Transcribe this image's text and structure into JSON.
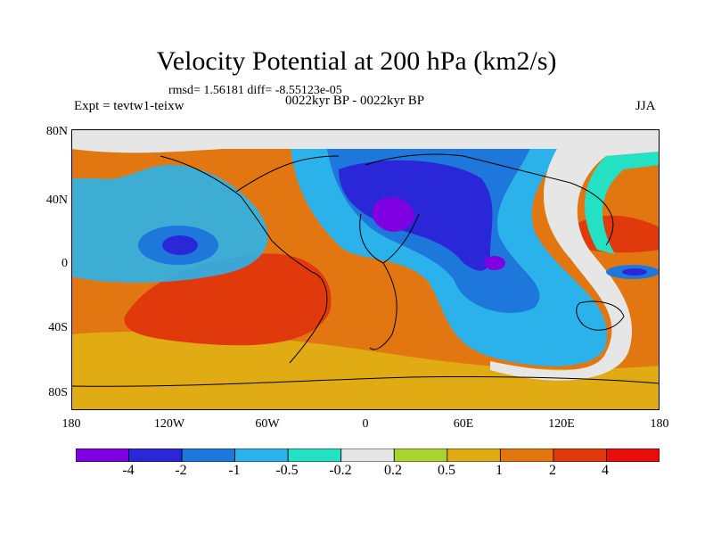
{
  "title": "Velocity Potential at 200 hPa (km2/s)",
  "stats": "rmsd= 1.56181 diff= -8.55123e-05",
  "experiment": "Expt = tevtw1-teixw",
  "period": "0022kyr BP - 0022kyr BP",
  "season": "JJA",
  "y_axis_labels": [
    "80N",
    "40N",
    "0",
    "40S",
    "80S"
  ],
  "x_axis_labels": [
    "180",
    "120W",
    "60W",
    "0",
    "60E",
    "120E",
    "180"
  ],
  "colorbar": {
    "labels": [
      "-4",
      "-2",
      "-1",
      "-0.5",
      "-0.2",
      "0.2",
      "0.5",
      "1",
      "2",
      "4"
    ],
    "colors": [
      "#7f00e0",
      "#2a27d8",
      "#1e78dc",
      "#2cb2ea",
      "#25e1c4",
      "#e6e6e6",
      "#a9d42f",
      "#e0ab13",
      "#e27712",
      "#e03a0c",
      "#e80e0e"
    ]
  },
  "colors": {
    "low": "#7f00e0",
    "neutral": "#e6e6e6",
    "high": "#e80e0e"
  }
}
